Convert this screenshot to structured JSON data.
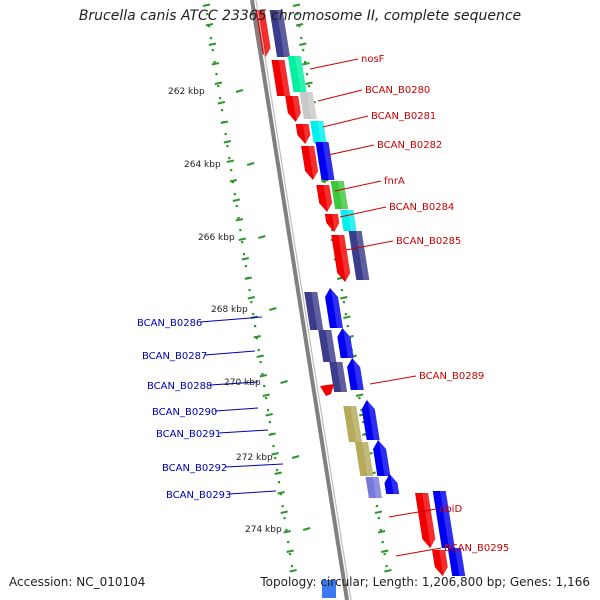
{
  "title": "Brucella canis ATCC 23365 chromosome II, complete sequence",
  "accession": "Accession: NC_010104",
  "topology": "Topology: circular; Length: 1,206,800 bp; Genes: 1,166",
  "colors": {
    "red": "#f00000",
    "dark_blue": "#3c3c8c",
    "blue": "#0000f0",
    "teal": "#00f0a0",
    "gray": "#c8c8c8",
    "cyan": "#00f0f0",
    "green": "#3cc83c",
    "olive": "#b4aa5a",
    "lavender": "#7878dc",
    "backbone": "#808080",
    "tick": "#2d962d",
    "label_red": "#cc0000",
    "label_blue": "#0000b4"
  },
  "kbp_ticks": [
    {
      "kbp": 262,
      "label": "262 kbp"
    },
    {
      "kbp": 264,
      "label": "264 kbp"
    },
    {
      "kbp": 266,
      "label": "266 kbp"
    },
    {
      "kbp": 268,
      "label": "268 kbp"
    },
    {
      "kbp": 270,
      "label": "270 kbp"
    },
    {
      "kbp": 272,
      "label": "272 kbp"
    },
    {
      "kbp": 274,
      "label": "274 kbp"
    }
  ],
  "gene_labels_right": [
    "nosF",
    "BCAN_B0280",
    "BCAN_B0281",
    "BCAN_B0282",
    "fnrA",
    "BCAN_B0284",
    "BCAN_B0285",
    "BCAN_B0289",
    "ubiD",
    "BCAN_B0295"
  ],
  "gene_labels_left": [
    "BCAN_B0286",
    "BCAN_B0287",
    "BCAN_B0288",
    "BCAN_B0290",
    "BCAN_B0291",
    "BCAN_B0292",
    "BCAN_B0293"
  ]
}
